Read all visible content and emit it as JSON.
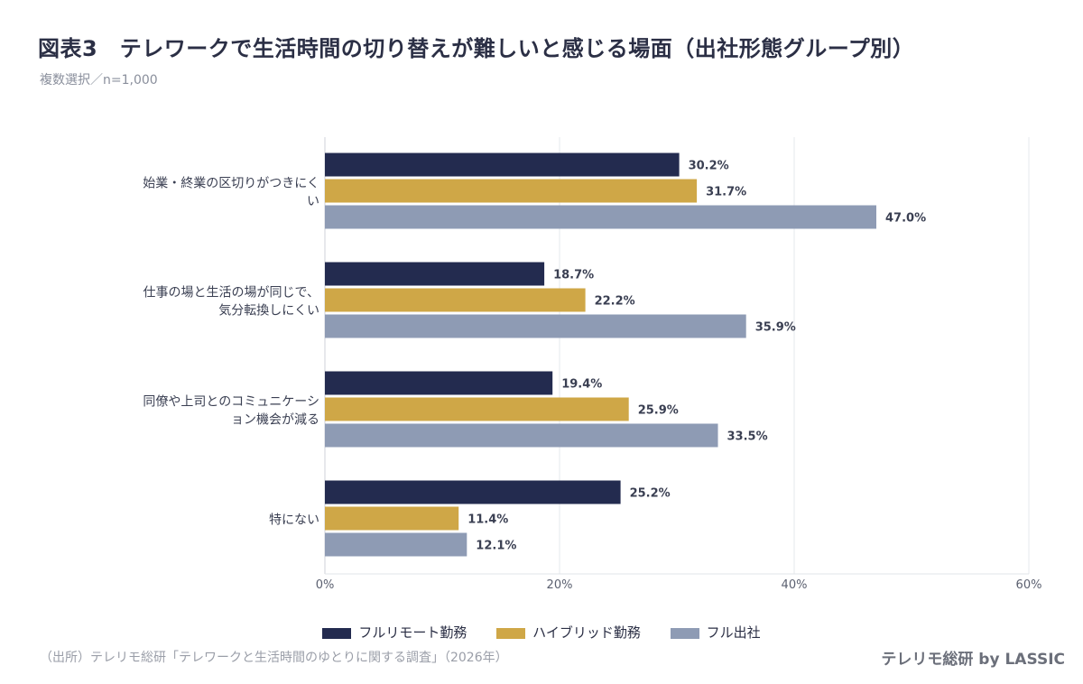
{
  "title": "図表3　テレワークで生活時間の切り替えが難しいと感じる場面（出社形態グループ別）",
  "subtitle": "複数選択／n=1,000",
  "source": "（出所）テレリモ総研「テレワークと生活時間のゆとりに関する調査」（2026年）",
  "brand": "テレリモ総研 by LASSIC",
  "colors": {
    "series": [
      "#232b4f",
      "#cfa747",
      "#8e9bb4"
    ],
    "grid": "#e6e8ec"
  },
  "chart_data": {
    "type": "bar",
    "orientation": "horizontal",
    "categories": [
      [
        "始業・終業の区切りがつきにく",
        "い"
      ],
      [
        "仕事の場と生活の場が同じで、",
        "気分転換しにくい"
      ],
      [
        "同僚や上司とのコミュニケーシ",
        "ョン機会が減る"
      ],
      [
        "特にない"
      ]
    ],
    "series": [
      {
        "name": "フルリモート勤務",
        "values": [
          30.2,
          18.7,
          19.4,
          25.2
        ]
      },
      {
        "name": "ハイブリッド勤務",
        "values": [
          31.7,
          22.2,
          25.9,
          11.4
        ]
      },
      {
        "name": "フル出社",
        "values": [
          47.0,
          35.9,
          33.5,
          12.1
        ]
      }
    ],
    "value_labels": [
      [
        "30.2%",
        "18.7%",
        "19.4%",
        "25.2%"
      ],
      [
        "31.7%",
        "22.2%",
        "25.9%",
        "11.4%"
      ],
      [
        "47.0%",
        "35.9%",
        "33.5%",
        "12.1%"
      ]
    ],
    "xlim": [
      0,
      60
    ],
    "ticks": [
      0,
      20,
      40,
      60
    ],
    "tick_labels": [
      "0%",
      "20%",
      "40%",
      "60%"
    ],
    "grid": true,
    "legend_position": "bottom-center"
  }
}
